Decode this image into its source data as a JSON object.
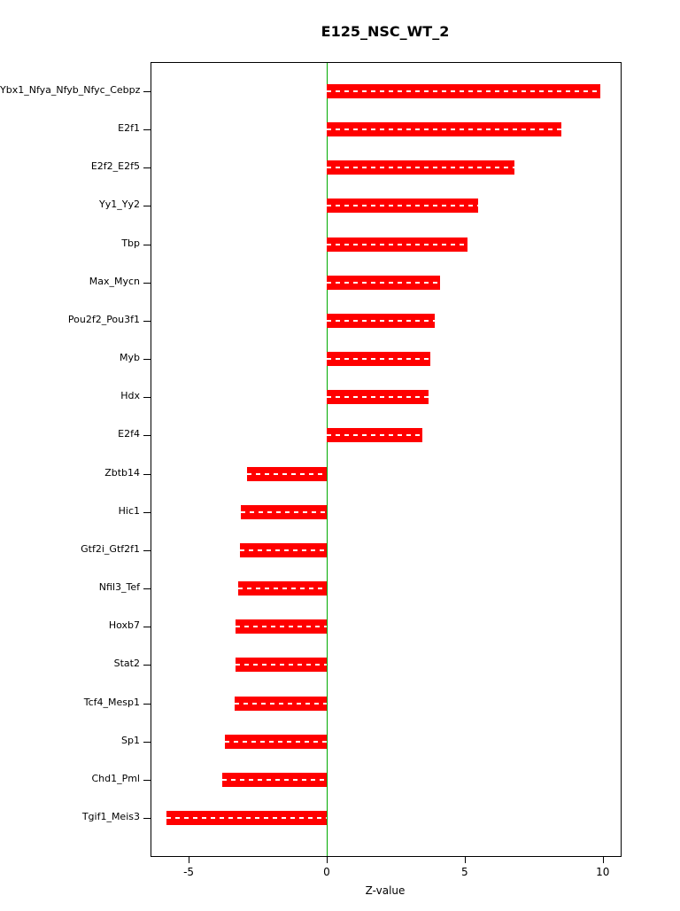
{
  "chart_data": {
    "type": "bar",
    "orientation": "horizontal",
    "title": "E125_NSC_WT_2",
    "xlabel": "Z-value",
    "ylabel": "",
    "categories": [
      "Ybx1_Nfya_Nfyb_Nfyc_Cebpz",
      "E2f1",
      "E2f2_E2f5",
      "Yy1_Yy2",
      "Tbp",
      "Max_Mycn",
      "Pou2f2_Pou3f1",
      "Myb",
      "Hdx",
      "E2f4",
      "Zbtb14",
      "Hic1",
      "Gtf2i_Gtf2f1",
      "Nfil3_Tef",
      "Hoxb7",
      "Stat2",
      "Tcf4_Mesp1",
      "Sp1",
      "Chd1_Pml",
      "Tgif1_Meis3"
    ],
    "values": [
      9.9,
      8.5,
      6.8,
      5.5,
      5.1,
      4.1,
      3.9,
      3.75,
      3.7,
      3.45,
      -2.9,
      -3.1,
      -3.15,
      -3.2,
      -3.3,
      -3.3,
      -3.35,
      -3.7,
      -3.8,
      -5.8
    ],
    "xlim": [
      -6.35,
      10.65
    ],
    "xticks": [
      "-5",
      "0",
      "5",
      "10"
    ],
    "xtick_values": [
      -5,
      0,
      5,
      10
    ],
    "grid": false,
    "legend": false,
    "bar_color": "#ff0000",
    "zero_line_color": "#00ab00",
    "bar_dash_color": "#ffffff"
  }
}
